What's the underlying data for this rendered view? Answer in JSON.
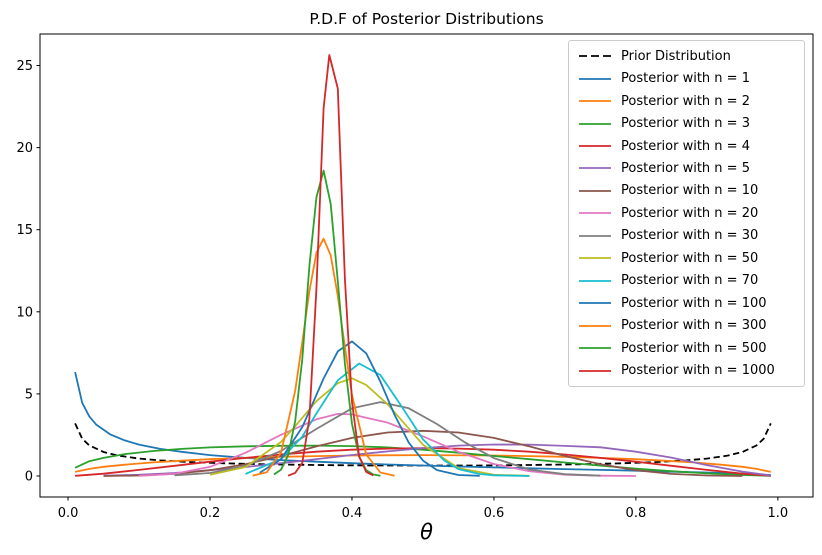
{
  "chart_data": {
    "type": "line",
    "title": "P.D.F of Posterior Distributions",
    "xlabel": "θ",
    "ylabel": "",
    "grid": false,
    "legend_position": "upper right",
    "xlim": [
      -0.0395,
      1.0495
    ],
    "ylim": [
      -1.28,
      26.92
    ],
    "xticks": {
      "values": [
        0.0,
        0.2,
        0.4,
        0.6,
        0.8,
        1.0
      ],
      "labels": [
        "0.0",
        "0.2",
        "0.4",
        "0.6",
        "0.8",
        "1.0"
      ]
    },
    "yticks": {
      "values": [
        0,
        5,
        10,
        15,
        20,
        25
      ],
      "labels": [
        "0",
        "5",
        "10",
        "15",
        "20",
        "25"
      ]
    },
    "series": [
      {
        "label": "Prior Distribution",
        "color": "#000000",
        "dashed": true,
        "points": [
          [
            0.01,
            3.2
          ],
          [
            0.02,
            2.27
          ],
          [
            0.03,
            1.86
          ],
          [
            0.05,
            1.46
          ],
          [
            0.07,
            1.25
          ],
          [
            0.1,
            1.06
          ],
          [
            0.13,
            0.95
          ],
          [
            0.17,
            0.85
          ],
          [
            0.22,
            0.77
          ],
          [
            0.28,
            0.71
          ],
          [
            0.35,
            0.67
          ],
          [
            0.42,
            0.64
          ],
          [
            0.5,
            0.64
          ],
          [
            0.58,
            0.64
          ],
          [
            0.65,
            0.67
          ],
          [
            0.72,
            0.71
          ],
          [
            0.78,
            0.77
          ],
          [
            0.83,
            0.85
          ],
          [
            0.87,
            0.95
          ],
          [
            0.9,
            1.06
          ],
          [
            0.93,
            1.25
          ],
          [
            0.95,
            1.46
          ],
          [
            0.97,
            1.86
          ],
          [
            0.98,
            2.27
          ],
          [
            0.99,
            3.2
          ]
        ]
      },
      {
        "label": "Posterior with n = 1",
        "color": "#1f77b4",
        "dashed": false,
        "points": [
          [
            0.01,
            6.33
          ],
          [
            0.02,
            4.46
          ],
          [
            0.03,
            3.63
          ],
          [
            0.04,
            3.12
          ],
          [
            0.06,
            2.52
          ],
          [
            0.08,
            2.17
          ],
          [
            0.1,
            1.91
          ],
          [
            0.13,
            1.65
          ],
          [
            0.16,
            1.47
          ],
          [
            0.2,
            1.27
          ],
          [
            0.25,
            1.1
          ],
          [
            0.3,
            0.97
          ],
          [
            0.35,
            0.87
          ],
          [
            0.4,
            0.78
          ],
          [
            0.45,
            0.7
          ],
          [
            0.5,
            0.64
          ],
          [
            0.55,
            0.58
          ],
          [
            0.6,
            0.52
          ],
          [
            0.65,
            0.47
          ],
          [
            0.7,
            0.42
          ],
          [
            0.75,
            0.37
          ],
          [
            0.8,
            0.32
          ],
          [
            0.85,
            0.26
          ],
          [
            0.9,
            0.21
          ],
          [
            0.95,
            0.15
          ],
          [
            0.99,
            0.06
          ]
        ]
      },
      {
        "label": "Posterior with n = 2",
        "color": "#ff7f0e",
        "dashed": false,
        "points": [
          [
            0.01,
            0.25
          ],
          [
            0.03,
            0.43
          ],
          [
            0.05,
            0.56
          ],
          [
            0.08,
            0.69
          ],
          [
            0.12,
            0.83
          ],
          [
            0.16,
            0.93
          ],
          [
            0.2,
            1.02
          ],
          [
            0.25,
            1.1
          ],
          [
            0.3,
            1.17
          ],
          [
            0.35,
            1.21
          ],
          [
            0.4,
            1.25
          ],
          [
            0.5,
            1.27
          ],
          [
            0.6,
            1.25
          ],
          [
            0.65,
            1.21
          ],
          [
            0.7,
            1.17
          ],
          [
            0.75,
            1.1
          ],
          [
            0.8,
            1.02
          ],
          [
            0.84,
            0.93
          ],
          [
            0.88,
            0.83
          ],
          [
            0.92,
            0.69
          ],
          [
            0.95,
            0.56
          ],
          [
            0.97,
            0.43
          ],
          [
            0.99,
            0.25
          ]
        ]
      },
      {
        "label": "Posterior with n = 3",
        "color": "#2ca02c",
        "dashed": false,
        "points": [
          [
            0.01,
            0.5
          ],
          [
            0.03,
            0.9
          ],
          [
            0.05,
            1.1
          ],
          [
            0.08,
            1.33
          ],
          [
            0.12,
            1.52
          ],
          [
            0.16,
            1.65
          ],
          [
            0.2,
            1.74
          ],
          [
            0.25,
            1.81
          ],
          [
            0.3,
            1.84
          ],
          [
            0.35,
            1.85
          ],
          [
            0.4,
            1.82
          ],
          [
            0.45,
            1.74
          ],
          [
            0.5,
            1.6
          ],
          [
            0.55,
            1.42
          ],
          [
            0.6,
            1.22
          ],
          [
            0.65,
            1.02
          ],
          [
            0.7,
            0.82
          ],
          [
            0.75,
            0.63
          ],
          [
            0.8,
            0.45
          ],
          [
            0.85,
            0.29
          ],
          [
            0.9,
            0.16
          ],
          [
            0.95,
            0.06
          ],
          [
            0.99,
            0.01
          ]
        ]
      },
      {
        "label": "Posterior with n = 4",
        "color": "#d62728",
        "dashed": false,
        "points": [
          [
            0.01,
            0.01
          ],
          [
            0.05,
            0.14
          ],
          [
            0.1,
            0.37
          ],
          [
            0.15,
            0.62
          ],
          [
            0.2,
            0.87
          ],
          [
            0.25,
            1.1
          ],
          [
            0.3,
            1.31
          ],
          [
            0.35,
            1.48
          ],
          [
            0.4,
            1.6
          ],
          [
            0.45,
            1.67
          ],
          [
            0.5,
            1.7
          ],
          [
            0.55,
            1.67
          ],
          [
            0.6,
            1.6
          ],
          [
            0.65,
            1.48
          ],
          [
            0.7,
            1.31
          ],
          [
            0.75,
            1.1
          ],
          [
            0.8,
            0.87
          ],
          [
            0.85,
            0.62
          ],
          [
            0.9,
            0.37
          ],
          [
            0.95,
            0.14
          ],
          [
            0.99,
            0.01
          ]
        ]
      },
      {
        "label": "Posterior with n = 5",
        "color": "#9467bd",
        "dashed": false,
        "points": [
          [
            0.05,
            0.02
          ],
          [
            0.1,
            0.07
          ],
          [
            0.15,
            0.18
          ],
          [
            0.2,
            0.35
          ],
          [
            0.25,
            0.55
          ],
          [
            0.3,
            0.78
          ],
          [
            0.35,
            1.03
          ],
          [
            0.4,
            1.28
          ],
          [
            0.45,
            1.5
          ],
          [
            0.5,
            1.7
          ],
          [
            0.55,
            1.85
          ],
          [
            0.6,
            1.92
          ],
          [
            0.65,
            1.91
          ],
          [
            0.7,
            1.83
          ],
          [
            0.75,
            1.75
          ],
          [
            0.8,
            1.48
          ],
          [
            0.85,
            1.12
          ],
          [
            0.9,
            0.66
          ],
          [
            0.95,
            0.27
          ],
          [
            0.99,
            0.03
          ]
        ]
      },
      {
        "label": "Posterior with n = 10",
        "color": "#8c564b",
        "dashed": false,
        "points": [
          [
            0.05,
            0.0
          ],
          [
            0.1,
            0.03
          ],
          [
            0.15,
            0.13
          ],
          [
            0.2,
            0.35
          ],
          [
            0.25,
            0.72
          ],
          [
            0.3,
            1.22
          ],
          [
            0.35,
            1.8
          ],
          [
            0.4,
            2.32
          ],
          [
            0.45,
            2.65
          ],
          [
            0.5,
            2.75
          ],
          [
            0.55,
            2.65
          ],
          [
            0.6,
            2.32
          ],
          [
            0.65,
            1.8
          ],
          [
            0.7,
            1.22
          ],
          [
            0.75,
            0.72
          ],
          [
            0.8,
            0.35
          ],
          [
            0.85,
            0.13
          ],
          [
            0.9,
            0.03
          ],
          [
            0.95,
            0.0
          ]
        ]
      },
      {
        "label": "Posterior with n = 20",
        "color": "#e377c2",
        "dashed": false,
        "points": [
          [
            0.1,
            0.01
          ],
          [
            0.15,
            0.13
          ],
          [
            0.2,
            0.56
          ],
          [
            0.25,
            1.41
          ],
          [
            0.3,
            2.51
          ],
          [
            0.35,
            3.45
          ],
          [
            0.38,
            3.78
          ],
          [
            0.4,
            3.75
          ],
          [
            0.42,
            3.55
          ],
          [
            0.45,
            3.25
          ],
          [
            0.5,
            2.42
          ],
          [
            0.55,
            1.47
          ],
          [
            0.6,
            0.73
          ],
          [
            0.65,
            0.29
          ],
          [
            0.7,
            0.08
          ],
          [
            0.75,
            0.02
          ],
          [
            0.8,
            0.0
          ]
        ]
      },
      {
        "label": "Posterior with n = 30",
        "color": "#7f7f7f",
        "dashed": false,
        "points": [
          [
            0.15,
            0.04
          ],
          [
            0.2,
            0.18
          ],
          [
            0.25,
            0.61
          ],
          [
            0.3,
            1.52
          ],
          [
            0.35,
            2.87
          ],
          [
            0.4,
            4.12
          ],
          [
            0.44,
            4.5
          ],
          [
            0.48,
            4.12
          ],
          [
            0.52,
            3.16
          ],
          [
            0.56,
            2.03
          ],
          [
            0.6,
            1.09
          ],
          [
            0.65,
            0.39
          ],
          [
            0.7,
            0.11
          ],
          [
            0.75,
            0.02
          ]
        ]
      },
      {
        "label": "Posterior with n = 50",
        "color": "#bcbd22",
        "dashed": false,
        "points": [
          [
            0.2,
            0.08
          ],
          [
            0.25,
            0.55
          ],
          [
            0.3,
            2.07
          ],
          [
            0.32,
            3.03
          ],
          [
            0.35,
            4.56
          ],
          [
            0.38,
            5.65
          ],
          [
            0.4,
            5.95
          ],
          [
            0.42,
            5.55
          ],
          [
            0.45,
            4.37
          ],
          [
            0.5,
            1.9
          ],
          [
            0.55,
            0.48
          ],
          [
            0.6,
            0.07
          ],
          [
            0.65,
            0.01
          ]
        ]
      },
      {
        "label": "Posterior with n = 70",
        "color": "#17becf",
        "dashed": false,
        "points": [
          [
            0.25,
            0.13
          ],
          [
            0.3,
            1.03
          ],
          [
            0.33,
            2.4
          ],
          [
            0.35,
            3.81
          ],
          [
            0.38,
            5.83
          ],
          [
            0.41,
            6.85
          ],
          [
            0.44,
            6.15
          ],
          [
            0.47,
            4.23
          ],
          [
            0.5,
            2.23
          ],
          [
            0.53,
            0.95
          ],
          [
            0.55,
            0.42
          ],
          [
            0.58,
            0.12
          ],
          [
            0.6,
            0.04
          ],
          [
            0.65,
            0.0
          ]
        ]
      },
      {
        "label": "Posterior with n = 100",
        "color": "#1f77b4",
        "dashed": false,
        "points": [
          [
            0.27,
            0.2
          ],
          [
            0.3,
            1.02
          ],
          [
            0.33,
            2.98
          ],
          [
            0.36,
            5.94
          ],
          [
            0.38,
            7.59
          ],
          [
            0.4,
            8.2
          ],
          [
            0.42,
            7.47
          ],
          [
            0.44,
            5.74
          ],
          [
            0.46,
            3.72
          ],
          [
            0.48,
            2.03
          ],
          [
            0.5,
            0.94
          ],
          [
            0.52,
            0.36
          ],
          [
            0.55,
            0.06
          ],
          [
            0.58,
            0.01
          ]
        ]
      },
      {
        "label": "Posterior with n = 300",
        "color": "#ff7f0e",
        "dashed": false,
        "points": [
          [
            0.26,
            0.02
          ],
          [
            0.28,
            0.23
          ],
          [
            0.3,
            1.42
          ],
          [
            0.32,
            5.19
          ],
          [
            0.33,
            8.16
          ],
          [
            0.34,
            11.26
          ],
          [
            0.35,
            13.62
          ],
          [
            0.36,
            14.45
          ],
          [
            0.37,
            13.44
          ],
          [
            0.38,
            10.97
          ],
          [
            0.39,
            7.85
          ],
          [
            0.4,
            4.93
          ],
          [
            0.42,
            1.31
          ],
          [
            0.44,
            0.21
          ],
          [
            0.46,
            0.02
          ]
        ]
      },
      {
        "label": "Posterior with n = 500",
        "color": "#2ca02c",
        "dashed": false,
        "points": [
          [
            0.29,
            0.09
          ],
          [
            0.3,
            0.38
          ],
          [
            0.31,
            1.26
          ],
          [
            0.32,
            3.34
          ],
          [
            0.33,
            7.12
          ],
          [
            0.34,
            12.8
          ],
          [
            0.35,
            17.0
          ],
          [
            0.36,
            18.6
          ],
          [
            0.37,
            16.57
          ],
          [
            0.38,
            11.87
          ],
          [
            0.39,
            6.84
          ],
          [
            0.4,
            3.17
          ],
          [
            0.41,
            1.18
          ],
          [
            0.42,
            0.35
          ],
          [
            0.43,
            0.09
          ],
          [
            0.44,
            0.02
          ]
        ]
      },
      {
        "label": "Posterior with n = 1000",
        "color": "#d62728",
        "dashed": false,
        "points": [
          [
            0.31,
            0.02
          ],
          [
            0.32,
            0.19
          ],
          [
            0.33,
            0.8
          ],
          [
            0.34,
            3.5
          ],
          [
            0.35,
            11.5
          ],
          [
            0.36,
            22.4
          ],
          [
            0.368,
            25.64
          ],
          [
            0.38,
            23.6
          ],
          [
            0.39,
            12.0
          ],
          [
            0.4,
            4.5
          ],
          [
            0.41,
            1.2
          ],
          [
            0.42,
            0.25
          ],
          [
            0.43,
            0.03
          ]
        ]
      }
    ]
  }
}
